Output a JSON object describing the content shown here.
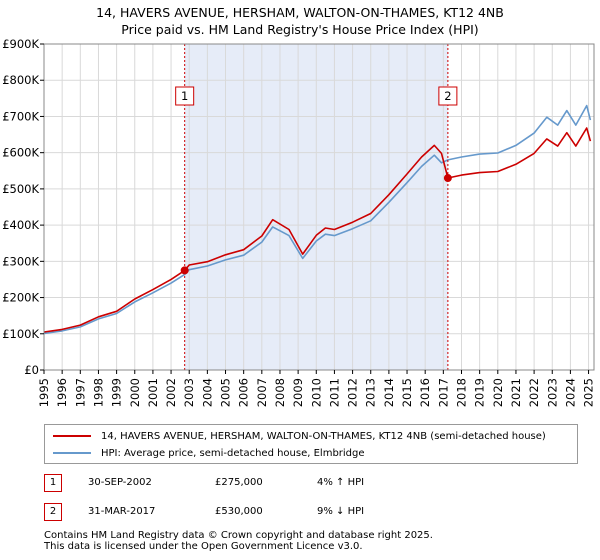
{
  "chart_data": {
    "type": "line",
    "title": "14, HAVERS AVENUE, HERSHAM, WALTON-ON-THAMES, KT12 4NB",
    "subtitle": "Price paid vs. HM Land Registry's House Price Index (HPI)",
    "xlabel": "",
    "ylabel": "",
    "xlim": [
      1995,
      2025.3
    ],
    "ylim": [
      0,
      900000
    ],
    "y_ticks": [
      {
        "value": 0,
        "label": "£0"
      },
      {
        "value": 100000,
        "label": "£100K"
      },
      {
        "value": 200000,
        "label": "£200K"
      },
      {
        "value": 300000,
        "label": "£300K"
      },
      {
        "value": 400000,
        "label": "£400K"
      },
      {
        "value": 500000,
        "label": "£500K"
      },
      {
        "value": 600000,
        "label": "£600K"
      },
      {
        "value": 700000,
        "label": "£700K"
      },
      {
        "value": 800000,
        "label": "£800K"
      },
      {
        "value": 900000,
        "label": "£900K"
      }
    ],
    "x_ticks": [
      "1995",
      "1996",
      "1997",
      "1998",
      "1999",
      "2000",
      "2001",
      "2002",
      "2003",
      "2004",
      "2005",
      "2006",
      "2007",
      "2008",
      "2009",
      "2010",
      "2011",
      "2012",
      "2013",
      "2014",
      "2015",
      "2016",
      "2017",
      "2018",
      "2019",
      "2020",
      "2021",
      "2022",
      "2023",
      "2024",
      "2025"
    ],
    "shaded_region": [
      2002.75,
      2017.25
    ],
    "grid": true,
    "series": [
      {
        "name": "14, HAVERS AVENUE, HERSHAM, WALTON-ON-THAMES, KT12 4NB (semi-detached house)",
        "color": "#cc0000",
        "x": [
          1995,
          1996,
          1997,
          1998,
          1999,
          2000,
          2001,
          2002,
          2002.75,
          2003,
          2004,
          2005,
          2006,
          2007,
          2007.6,
          2008.5,
          2009.25,
          2010,
          2010.5,
          2011,
          2012,
          2013,
          2014,
          2015,
          2015.8,
          2016.5,
          2016.9,
          2017.25,
          2018,
          2019,
          2020,
          2021,
          2022,
          2022.7,
          2023.3,
          2023.8,
          2024.3,
          2024.9,
          2025.1
        ],
        "values": [
          105000,
          112000,
          124000,
          147000,
          162000,
          196000,
          222000,
          250000,
          275000,
          290000,
          299000,
          318000,
          332000,
          370000,
          415000,
          388000,
          320000,
          372000,
          392000,
          388000,
          408000,
          432000,
          484000,
          541000,
          588000,
          620000,
          598000,
          530000,
          538000,
          545000,
          548000,
          568000,
          598000,
          638000,
          618000,
          655000,
          618000,
          668000,
          632000
        ]
      },
      {
        "name": "HPI: Average price, semi-detached house, Elmbridge",
        "color": "#6699cc",
        "x": [
          1995,
          1996,
          1997,
          1998,
          1999,
          2000,
          2001,
          2002,
          2002.75,
          2003,
          2004,
          2005,
          2006,
          2007,
          2007.6,
          2008.5,
          2009.25,
          2010,
          2010.5,
          2011,
          2012,
          2013,
          2014,
          2015,
          2015.8,
          2016.5,
          2016.9,
          2017.25,
          2018,
          2019,
          2020,
          2021,
          2022,
          2022.7,
          2023.3,
          2023.8,
          2024.3,
          2024.9,
          2025.1
        ],
        "values": [
          101000,
          108000,
          119000,
          141000,
          156000,
          188000,
          213000,
          240000,
          264000,
          277000,
          287000,
          304000,
          317000,
          353000,
          395000,
          371000,
          308000,
          356000,
          375000,
          371000,
          390000,
          412000,
          463000,
          517000,
          562000,
          593000,
          572000,
          580000,
          588000,
          596000,
          599000,
          620000,
          654000,
          698000,
          676000,
          716000,
          676000,
          730000,
          690000
        ]
      }
    ],
    "markers": [
      {
        "label": "1",
        "x": 2002.75,
        "y": 275000
      },
      {
        "label": "2",
        "x": 2017.25,
        "y": 530000
      }
    ]
  },
  "legend": {
    "property_label": "14, HAVERS AVENUE, HERSHAM, WALTON-ON-THAMES, KT12 4NB (semi-detached house)",
    "hpi_label": "HPI: Average price, semi-detached house, Elmbridge"
  },
  "transactions": [
    {
      "num": "1",
      "date": "30-SEP-2002",
      "price": "£275,000",
      "hpi": "4% ↑ HPI"
    },
    {
      "num": "2",
      "date": "31-MAR-2017",
      "price": "£530,000",
      "hpi": "9% ↓ HPI"
    }
  ],
  "footer": {
    "line1": "Contains HM Land Registry data © Crown copyright and database right 2025.",
    "line2": "This data is licensed under the Open Government Licence v3.0."
  }
}
